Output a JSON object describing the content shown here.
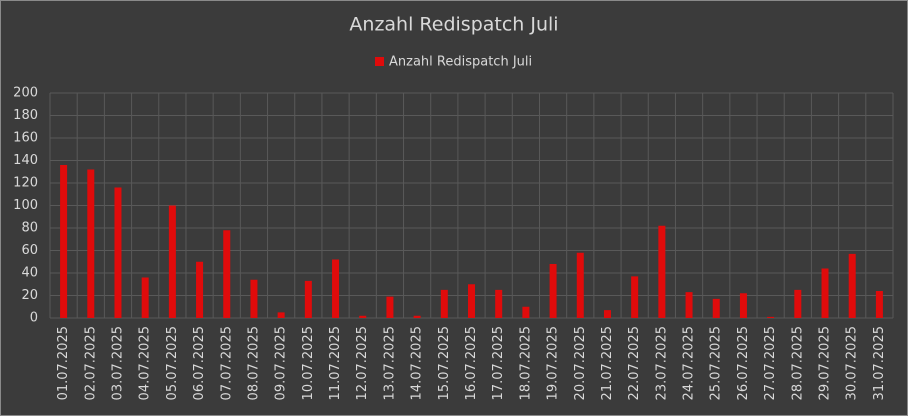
{
  "chart_data": {
    "type": "bar",
    "title": "Anzahl Redispatch Juli",
    "categories": [
      "01.07.2025",
      "02.07.2025",
      "03.07.2025",
      "04.07.2025",
      "05.07.2025",
      "06.07.2025",
      "07.07.2025",
      "08.07.2025",
      "09.07.2025",
      "10.07.2025",
      "11.07.2025",
      "12.07.2025",
      "13.07.2025",
      "14.07.2025",
      "15.07.2025",
      "16.07.2025",
      "17.07.2025",
      "18.07.2025",
      "19.07.2025",
      "20.07.2025",
      "21.07.2025",
      "22.07.2025",
      "23.07.2025",
      "24.07.2025",
      "25.07.2025",
      "26.07.2025",
      "27.07.2025",
      "28.07.2025",
      "29.07.2025",
      "30.07.2025",
      "31.07.2025"
    ],
    "series": [
      {
        "name": "Anzahl Redispatch Juli",
        "color": "#e00b0b",
        "values": [
          136,
          132,
          116,
          36,
          100,
          50,
          78,
          34,
          5,
          33,
          52,
          2,
          19,
          2,
          25,
          30,
          25,
          10,
          48,
          58,
          7,
          37,
          82,
          23,
          17,
          22,
          1,
          25,
          44,
          57,
          24
        ]
      }
    ],
    "ylim": [
      0,
      200
    ],
    "yticks": [
      0,
      20,
      40,
      60,
      80,
      100,
      120,
      140,
      160,
      180,
      200
    ],
    "grid": true,
    "legend": "top"
  }
}
